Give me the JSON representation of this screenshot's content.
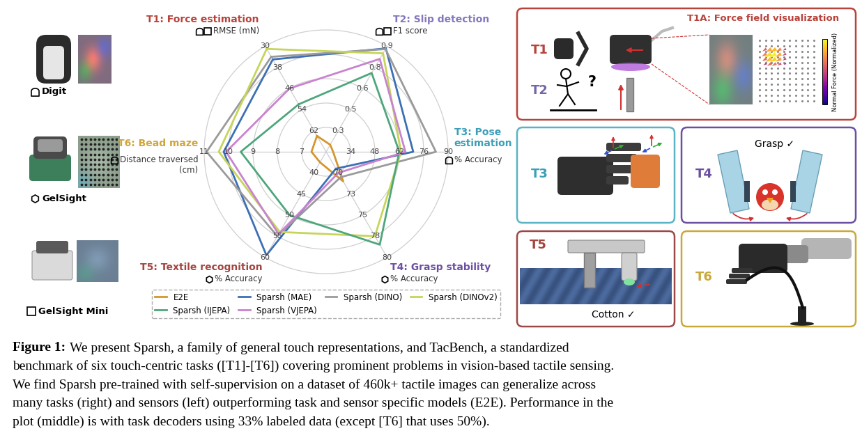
{
  "sensors": [
    {
      "name": "Digit",
      "marker": "arch"
    },
    {
      "name": "GelSight",
      "marker": "hexagon"
    },
    {
      "name": "GelSight Mini",
      "marker": "square"
    }
  ],
  "chart_data": {
    "type": "radar",
    "grid": true,
    "legend": "below",
    "axes": [
      {
        "title": "T1: Force estimation",
        "metric": "RMSE (mN)",
        "sensors": [
          "Digit",
          "GelSight Mini"
        ],
        "color": "#b8433b",
        "lim": [
          70,
          30
        ],
        "ticks": [
          62,
          54,
          46,
          38,
          30
        ]
      },
      {
        "title": "T2: Slip detection",
        "metric": "F1 score",
        "sensors": [
          "Digit",
          "GelSight Mini"
        ],
        "color": "#8577bd",
        "lim": [
          0.15,
          0.9
        ],
        "ticks": [
          0.3,
          {
            "value": 0.45,
            "label": "0.5"
          },
          0.6,
          {
            "value": 0.75,
            "label": "0.8"
          },
          0.9
        ]
      },
      {
        "title": "T3: Pose\nestimation",
        "metric": "% Accuracy",
        "sensors": [
          "Digit"
        ],
        "color": "#3b9fb8",
        "lim": [
          20,
          90
        ],
        "ticks": [
          34,
          48,
          62,
          76,
          90
        ]
      },
      {
        "title": "T4: Grasp stability",
        "metric": "% Accuracy",
        "sensors": [
          "GelSight"
        ],
        "color": "#6b4fa3",
        "lim": [
          67.5,
          80
        ],
        "ticks": [
          70,
          {
            "value": 72.5,
            "label": "73"
          },
          75,
          {
            "value": 77.5,
            "label": "78"
          },
          80
        ]
      },
      {
        "title": "T5: Textile recognition",
        "metric": "% Accuracy",
        "sensors": [
          "GelSight"
        ],
        "color": "#a3463f",
        "lim": [
          35,
          60
        ],
        "ticks": [
          40,
          45,
          50,
          55,
          60
        ]
      },
      {
        "title": "T6: Bead maze",
        "metric": "Distance traversed\n(cm)",
        "sensors": [
          "Digit"
        ],
        "color": "#d0a53a",
        "lim": [
          6,
          11
        ],
        "ticks": [
          7,
          8,
          9,
          10,
          11
        ]
      }
    ],
    "series": [
      {
        "name": "E2E",
        "color": "#d4962e",
        "values": [
          64,
          0.2,
          24,
          71,
          37.5,
          6.6
        ]
      },
      {
        "name": "Sparsh (MAE)",
        "color": "#3c6fb4",
        "values": [
          35,
          0.885,
          70,
          69.5,
          59.5,
          10.2
        ]
      },
      {
        "name": "Sparsh (DINO)",
        "color": "#9a9a9a",
        "values": [
          34,
          0.88,
          83,
          70.5,
          55,
          10.9
        ]
      },
      {
        "name": "Sparsh (DINOv2)",
        "color": "#c6d55a",
        "values": [
          31,
          0.85,
          63,
          77.5,
          54,
          10.4
        ]
      },
      {
        "name": "Sparsh (IJEPA)",
        "color": "#4ea67c",
        "values": [
          52,
          0.71,
          62,
          78.5,
          50,
          9.5
        ]
      },
      {
        "name": "Sparsh (VJEPA)",
        "color": "#c883cf",
        "values": [
          46,
          0.81,
          65.5,
          70,
          54.5,
          10.1
        ]
      }
    ]
  },
  "panels": [
    {
      "labels": [
        {
          "text": "T1",
          "color": "#b8433b"
        },
        {
          "text": "T2",
          "color": "#7566a8"
        }
      ],
      "color": "#b8433b",
      "title": "T1A: Force field visualization",
      "colorbar_label": "Normal Force (Normalized)",
      "note": "?"
    },
    {
      "labels": [
        {
          "text": "T3",
          "color": "#3b9fb8"
        }
      ],
      "color": "#5bb3c4"
    },
    {
      "labels": [
        {
          "text": "T4",
          "color": "#6b4fa3"
        }
      ],
      "color": "#6b4fa3",
      "note": "Grasp ✓"
    },
    {
      "labels": [
        {
          "text": "T5",
          "color": "#a3463f"
        }
      ],
      "color": "#9c4848",
      "note": "Cotton ✓"
    },
    {
      "labels": [
        {
          "text": "T6",
          "color": "#c9a93a"
        }
      ],
      "color": "#c9a93a"
    }
  ],
  "caption": {
    "label": "Figure 1:",
    "lines": [
      "We present Sparsh, a family of general touch representations, and TacBench, a standardized",
      "benchmark of six touch-centric tasks ([T1]-[T6]) covering prominent problems in vision-based tactile sensing.",
      "We find Sparsh pre-trained with self-supervision on a dataset of 460k+ tactile images can generalize across",
      "many tasks (right) and sensors (left) outperforming task and sensor specific models (E2E). Performance in the",
      "plot (middle) is with task decoders using 33% labeled data (except [T6] that uses 50%)."
    ]
  }
}
